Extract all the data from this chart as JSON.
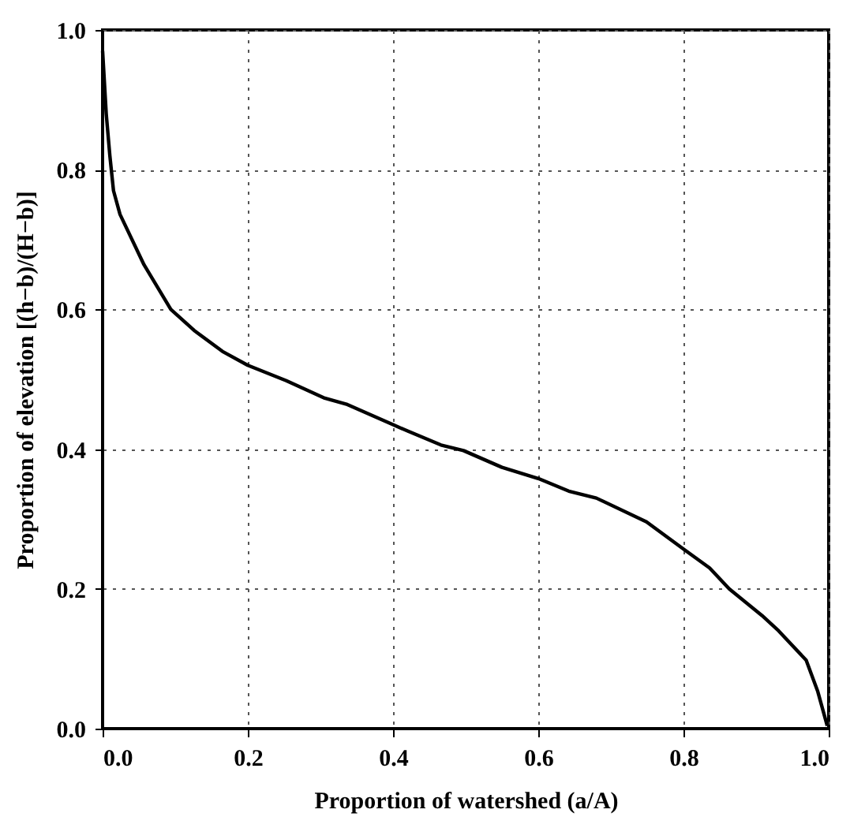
{
  "chart_data": {
    "type": "line",
    "xlabel": "Proportion of watershed (a/A)",
    "ylabel": "Proportion of elevation [(h−b)/(H−b)]",
    "series": [
      {
        "color": "#000000",
        "x": [
          0,
          0.005,
          0.01,
          0.015,
          0.024,
          0.057,
          0.094,
          0.126,
          0.165,
          0.2,
          0.253,
          0.306,
          0.337,
          0.4,
          0.42,
          0.466,
          0.497,
          0.55,
          0.6,
          0.642,
          0.68,
          0.749,
          0.8,
          0.836,
          0.863,
          0.908,
          0.931,
          0.969,
          0.985,
          0.998
        ],
        "values": [
          0.97,
          0.88,
          0.82,
          0.77,
          0.736,
          0.664,
          0.6,
          0.57,
          0.54,
          0.52,
          0.498,
          0.473,
          0.464,
          0.435,
          0.426,
          0.406,
          0.398,
          0.374,
          0.358,
          0.34,
          0.33,
          0.296,
          0.257,
          0.23,
          0.2,
          0.162,
          0.14,
          0.098,
          0.053,
          0.004
        ]
      }
    ],
    "xlim": [
      0,
      1
    ],
    "ylim": [
      0,
      1
    ],
    "xticks": [
      {
        "value": 0,
        "label": "0.0"
      },
      0.2,
      0.4,
      0.6,
      0.8,
      {
        "value": 1,
        "label": "1.0"
      }
    ],
    "yticks": [
      {
        "value": 0,
        "label": "0.0"
      },
      0.2,
      0.4,
      0.6,
      0.8,
      {
        "value": 1,
        "label": "1.0"
      }
    ],
    "grid": true,
    "marker": "none",
    "line_style": "solid"
  }
}
